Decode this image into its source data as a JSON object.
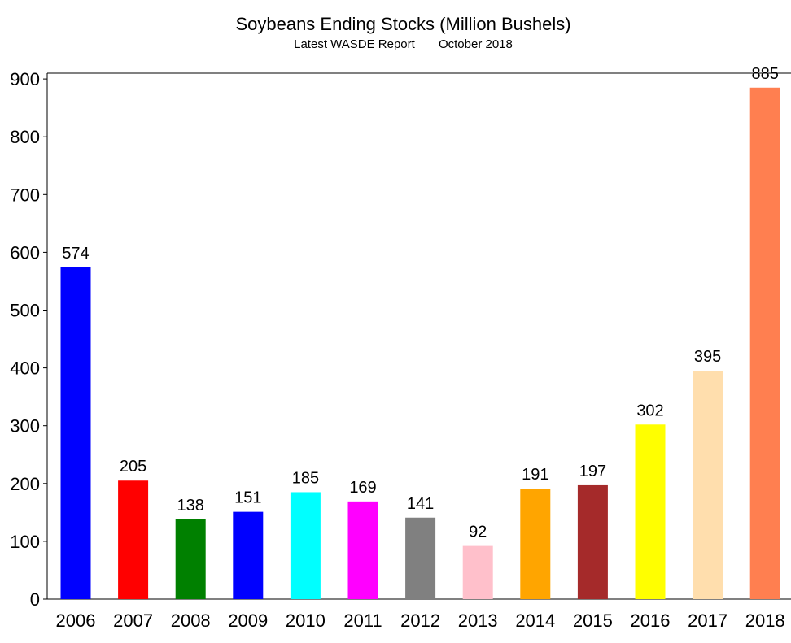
{
  "chart_data": {
    "type": "bar",
    "title": "Soybeans Ending Stocks (Million Bushels)",
    "subtitle": "Latest WASDE Report       October 2018",
    "xlabel": "",
    "ylabel": "",
    "categories": [
      "2006",
      "2007",
      "2008",
      "2009",
      "2010",
      "2011",
      "2012",
      "2013",
      "2014",
      "2015",
      "2016",
      "2017",
      "2018"
    ],
    "values": [
      574,
      205,
      138,
      151,
      185,
      169,
      141,
      92,
      191,
      197,
      302,
      395,
      885
    ],
    "data_labels": [
      "574",
      "205",
      "138",
      "151",
      "185",
      "169",
      "141",
      "92",
      "191",
      "197",
      "302",
      "395",
      "885"
    ],
    "colors": [
      "#0000ff",
      "#ff0000",
      "#008000",
      "#0000ff",
      "#00ffff",
      "#ff00ff",
      "#808080",
      "#ffc0cb",
      "#ffa500",
      "#a52a2a",
      "#ffff00",
      "#ffdead",
      "#ff7f50"
    ],
    "ylim": [
      0,
      910
    ],
    "yticks": [
      0,
      100,
      200,
      300,
      400,
      500,
      600,
      700,
      800,
      900
    ],
    "ytick_labels": [
      "0",
      "100",
      "200",
      "300",
      "400",
      "500",
      "600",
      "700",
      "800",
      "900"
    ],
    "grid": false,
    "legend": "none"
  }
}
